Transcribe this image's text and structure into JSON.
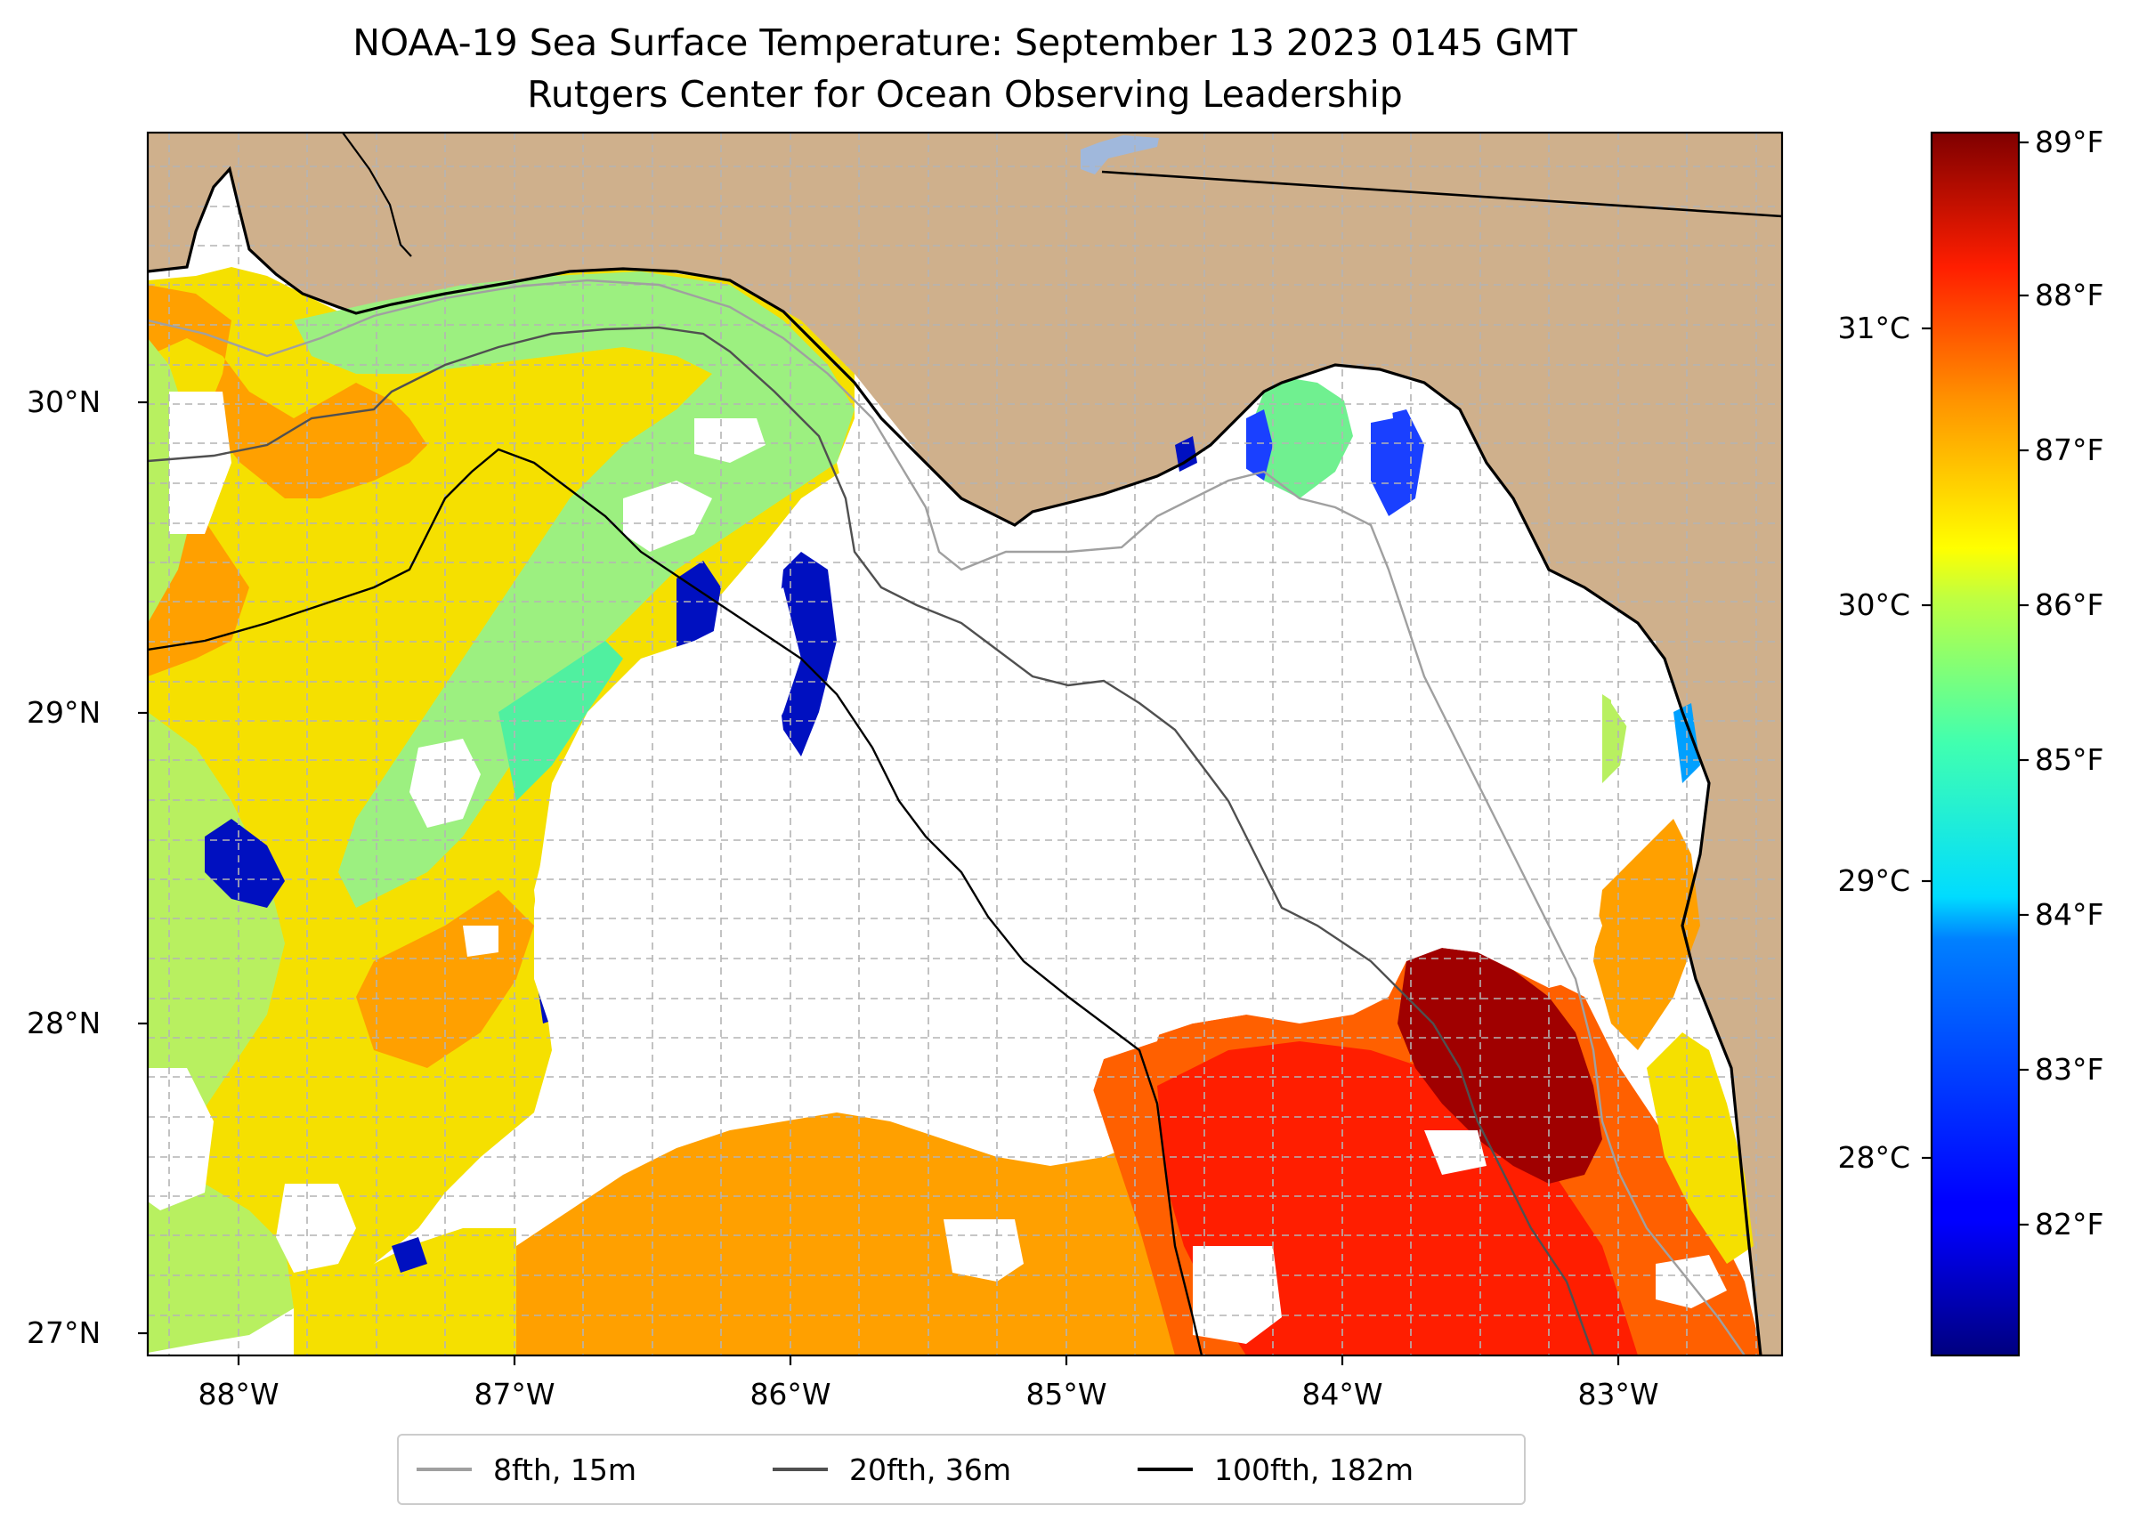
{
  "title": {
    "line1": "NOAA-19 Sea Surface Temperature: September 13 2023 0145 GMT",
    "line2": "Rutgers Center for Ocean Observing Leadership"
  },
  "map": {
    "lon_range": [
      -88.33,
      -82.42
    ],
    "lat_range": [
      26.93,
      30.85
    ],
    "land_color": "#cfb08c",
    "lake_color": "#a0b8dc",
    "gridlines": true
  },
  "axes": {
    "lat_ticks": [
      "27°N",
      "28°N",
      "29°N",
      "30°N"
    ],
    "lon_ticks": [
      "88°W",
      "87°W",
      "86°W",
      "85°W",
      "84°W",
      "83°W"
    ]
  },
  "colorbar": {
    "colormap": "jet",
    "range_f": [
      81.2,
      89.1
    ],
    "fahrenheit_ticks": [
      "82°F",
      "83°F",
      "84°F",
      "85°F",
      "86°F",
      "87°F",
      "88°F",
      "89°F"
    ],
    "celsius_ticks": [
      "28°C",
      "29°C",
      "30°C",
      "31°C"
    ]
  },
  "legend": {
    "items": [
      {
        "label": "8fth, 15m",
        "color": "#a0a0a0"
      },
      {
        "label": "20fth, 36m",
        "color": "#505050"
      },
      {
        "label": "100fth, 182m",
        "color": "#000000"
      }
    ]
  }
}
